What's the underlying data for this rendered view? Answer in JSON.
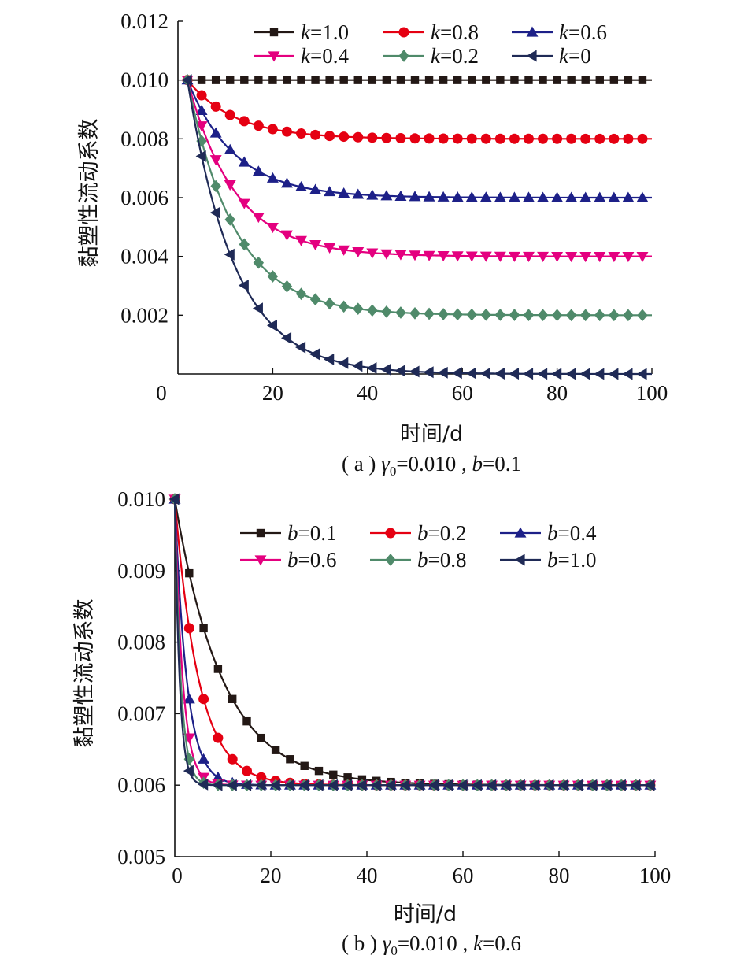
{
  "chart_data": [
    {
      "type": "line",
      "panel": "a",
      "xlabel": "时间/d",
      "ylabel": "黏塑性流动系数",
      "xlim": [
        0,
        100
      ],
      "ylim": [
        0,
        0.012
      ],
      "xticks": [
        "0",
        "20",
        "40",
        "60",
        "80",
        "100"
      ],
      "yticks": [
        "0.002",
        "0.004",
        "0.006",
        "0.008",
        "0.010",
        "0.012"
      ],
      "caption": {
        "prefix": "( a )",
        "gamma": "γ",
        "sub": "0",
        "rest": "=0.010 , ",
        "var": "b",
        "tail": "=0.1"
      },
      "model": {
        "gamma0": 0.01,
        "b": 0.1,
        "t0": 2,
        "step": 3
      },
      "legend_position": "top",
      "series": [
        {
          "legend_var": "k",
          "legend_value": "=1.0",
          "k": 1.0,
          "color": "#231815",
          "marker": "square"
        },
        {
          "legend_var": "k",
          "legend_value": "=0.8",
          "k": 0.8,
          "color": "#e50012",
          "marker": "circle"
        },
        {
          "legend_var": "k",
          "legend_value": "=0.6",
          "k": 0.6,
          "color": "#1d2088",
          "marker": "triangle-up"
        },
        {
          "legend_var": "k",
          "legend_value": "=0.4",
          "k": 0.4,
          "color": "#e4007f",
          "marker": "triangle-down"
        },
        {
          "legend_var": "k",
          "legend_value": "=0.2",
          "k": 0.2,
          "color": "#4f8a6a",
          "marker": "diamond"
        },
        {
          "legend_var": "k",
          "legend_value": "=0",
          "k": 0.0,
          "color": "#1f2a56",
          "marker": "triangle-left"
        }
      ]
    },
    {
      "type": "line",
      "panel": "b",
      "xlabel": "时间/d",
      "ylabel": "黏塑性流动系数",
      "xlim": [
        0,
        100
      ],
      "ylim": [
        0.005,
        0.01
      ],
      "xticks": [
        "0",
        "20",
        "40",
        "60",
        "80",
        "100"
      ],
      "yticks": [
        "0.005",
        "0.006",
        "0.007",
        "0.008",
        "0.009",
        "0.010"
      ],
      "caption": {
        "prefix": "( b )",
        "gamma": "γ",
        "sub": "0",
        "rest": "=0.010 , ",
        "var": "k",
        "tail": "=0.6"
      },
      "model": {
        "gamma0": 0.01,
        "k": 0.6,
        "t0": 0,
        "step": 3
      },
      "legend_position": "top",
      "series": [
        {
          "legend_var": "b",
          "legend_value": "=0.1",
          "b": 0.1,
          "color": "#231815",
          "marker": "square"
        },
        {
          "legend_var": "b",
          "legend_value": "=0.2",
          "b": 0.2,
          "color": "#e50012",
          "marker": "circle"
        },
        {
          "legend_var": "b",
          "legend_value": "=0.4",
          "b": 0.4,
          "color": "#1d2088",
          "marker": "triangle-up"
        },
        {
          "legend_var": "b",
          "legend_value": "=0.6",
          "b": 0.6,
          "color": "#e4007f",
          "marker": "triangle-down"
        },
        {
          "legend_var": "b",
          "legend_value": "=0.8",
          "b": 0.8,
          "color": "#4f8a6a",
          "marker": "diamond"
        },
        {
          "legend_var": "b",
          "legend_value": "=1.0",
          "b": 1.0,
          "color": "#1f2a56",
          "marker": "triangle-left"
        }
      ]
    }
  ]
}
